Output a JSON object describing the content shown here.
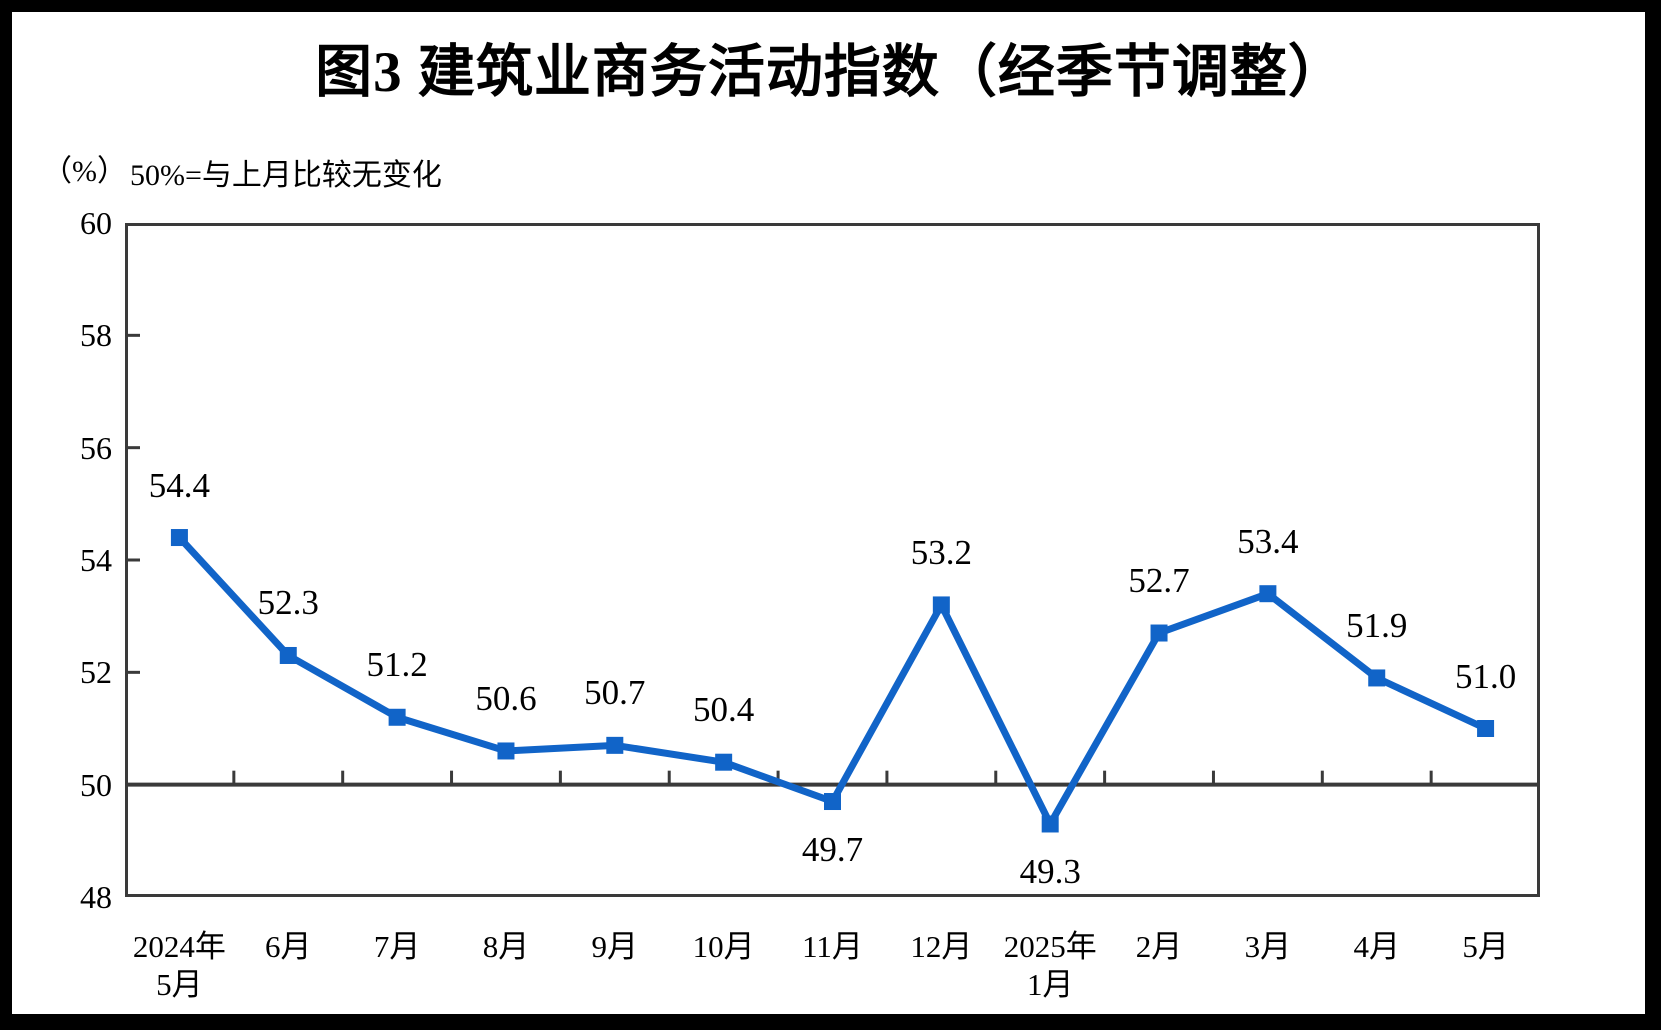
{
  "title": "图3  建筑业商务活动指数（经季节调整）",
  "y_axis_unit": "（%）",
  "reference_note": "50%=与上月比较无变化",
  "colors": {
    "line": "#1164c8",
    "axis": "#3a3a3a",
    "text": "#000000",
    "frame": "#000000",
    "background": "#ffffff"
  },
  "chart_data": {
    "type": "line",
    "title": "图3  建筑业商务活动指数（经季节调整）",
    "ylabel": "（%）",
    "annotation": "50%=与上月比较无变化",
    "categories_line1": [
      "2024年",
      "6月",
      "7月",
      "8月",
      "9月",
      "10月",
      "11月",
      "12月",
      "2025年",
      "2月",
      "3月",
      "4月",
      "5月"
    ],
    "categories_line2": [
      "5月",
      "",
      "",
      "",
      "",
      "",
      "",
      "",
      "1月",
      "",
      "",
      "",
      ""
    ],
    "values": [
      54.4,
      52.3,
      51.2,
      50.6,
      50.7,
      50.4,
      49.7,
      53.2,
      49.3,
      52.7,
      53.4,
      51.9,
      51.0
    ],
    "labels_below": [
      false,
      false,
      false,
      false,
      false,
      false,
      true,
      false,
      true,
      false,
      false,
      false,
      false
    ],
    "y_ticks": [
      60,
      58,
      56,
      54,
      52,
      50,
      48
    ],
    "ylim": [
      48,
      60
    ],
    "reference_line": 50,
    "marker": "square",
    "grid": false,
    "legend": false
  }
}
